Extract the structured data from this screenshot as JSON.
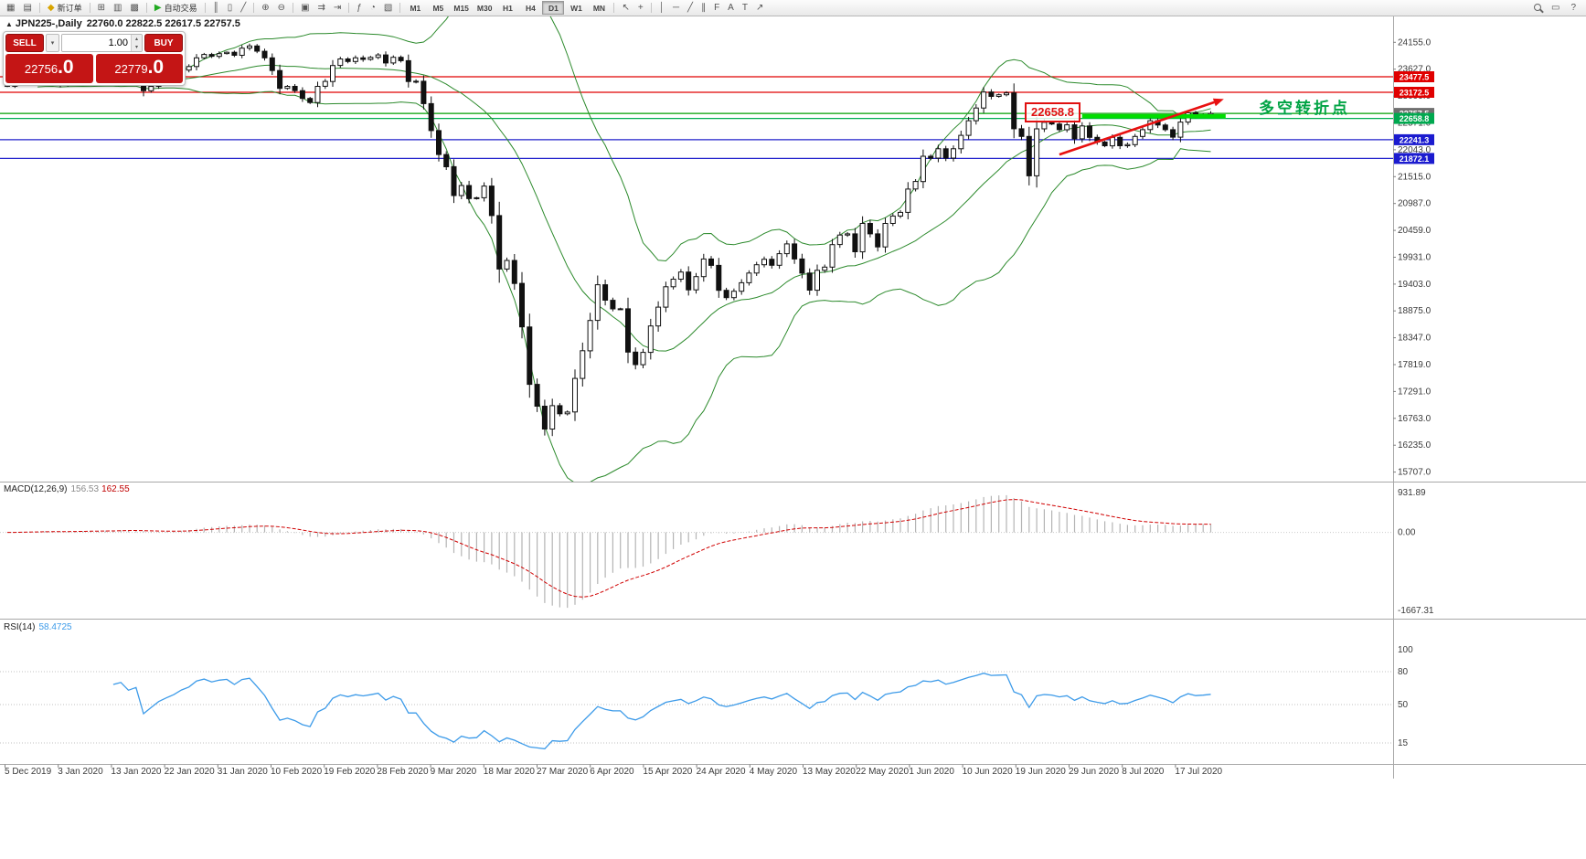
{
  "toolbar": {
    "groups": [
      {
        "items": [
          {
            "name": "new-chart",
            "glyph": "▦"
          },
          {
            "name": "profiles",
            "glyph": "▤"
          }
        ]
      },
      {
        "items": [
          {
            "name": "new-order",
            "glyph": "◆",
            "label": "新订单",
            "glyph_color": "#d8a400"
          }
        ]
      },
      {
        "items": [
          {
            "name": "market-watch",
            "glyph": "⊞"
          },
          {
            "name": "data-window",
            "glyph": "▥"
          },
          {
            "name": "navigator",
            "glyph": "▩"
          }
        ]
      },
      {
        "items": [
          {
            "name": "auto-trading",
            "glyph": "▶",
            "label": "自动交易",
            "glyph_color": "#22aa22"
          }
        ]
      },
      {
        "items": [
          {
            "name": "bar-chart",
            "glyph": "║"
          },
          {
            "name": "candlestick-chart",
            "glyph": "▯"
          },
          {
            "name": "line-chart",
            "glyph": "╱"
          }
        ]
      },
      {
        "items": [
          {
            "name": "zoom-in",
            "glyph": "⊕"
          },
          {
            "name": "zoom-out",
            "glyph": "⊖"
          }
        ]
      },
      {
        "items": [
          {
            "name": "tile-windows",
            "glyph": "▣"
          },
          {
            "name": "auto-scroll",
            "glyph": "⇉"
          },
          {
            "name": "chart-shift",
            "glyph": "⇥"
          }
        ]
      },
      {
        "items": [
          {
            "name": "indicators",
            "glyph": "ƒ"
          },
          {
            "name": "period-selector",
            "glyph": "◔"
          },
          {
            "name": "templates",
            "glyph": "▧"
          }
        ]
      },
      {
        "type": "timeframes"
      },
      {
        "items": [
          {
            "name": "cursor",
            "glyph": "↖"
          },
          {
            "name": "crosshair",
            "glyph": "+"
          }
        ]
      },
      {
        "items": [
          {
            "name": "vertical-line",
            "glyph": "│"
          },
          {
            "name": "horizontal-line",
            "glyph": "─"
          },
          {
            "name": "trendline",
            "glyph": "╱"
          },
          {
            "name": "channel",
            "glyph": "∥"
          },
          {
            "name": "fibonacci",
            "glyph": "F"
          },
          {
            "name": "text",
            "glyph": "A"
          },
          {
            "name": "text-label",
            "glyph": "T"
          },
          {
            "name": "arrows",
            "glyph": "↗"
          }
        ]
      }
    ],
    "timeframes": {
      "items": [
        "M1",
        "M5",
        "M15",
        "M30",
        "H1",
        "H4",
        "D1",
        "W1",
        "MN"
      ],
      "active": "D1"
    },
    "right_items": [
      {
        "name": "new-window",
        "glyph": "▭"
      },
      {
        "name": "help",
        "glyph": "?"
      }
    ]
  },
  "chart": {
    "collapse_icon": "▲",
    "symbol_title": "JPN225-,Daily",
    "ohlc": "22760.0 22822.5 22617.5 22757.5"
  },
  "one_click": {
    "sell_label": "SELL",
    "buy_label": "BUY",
    "volume": "1.00",
    "sell_price": "22756.0",
    "buy_price": "22779.0",
    "dropdown_icon": "▾",
    "spin_up": "▴",
    "spin_down": "▾"
  },
  "annotations": {
    "price_box": "22658.8",
    "turning_point": "多空转折点"
  },
  "macd": {
    "label": "MACD(12,26,9)",
    "value_main": "156.53",
    "value_signal": "162.55"
  },
  "rsi": {
    "label": "RSI(14)",
    "value": "58.4725"
  },
  "chart_data": {
    "type": "candlestick",
    "symbol": "JPN225-",
    "timeframe": "Daily",
    "ohlc_last": {
      "open": 22760.0,
      "high": 22822.5,
      "low": 22617.5,
      "close": 22757.5
    },
    "closes": [
      23292,
      23354,
      23430,
      23410,
      23391,
      23424,
      23360,
      23318,
      23380,
      23424,
      23452,
      23480,
      23440,
      23462,
      23506,
      23540,
      23480,
      23520,
      23204,
      23290,
      23385,
      23450,
      23512,
      23610,
      23680,
      23850,
      23916,
      23880,
      23933,
      23959,
      23900,
      24041,
      24083,
      23980,
      23850,
      23600,
      23250,
      23290,
      23205,
      23052,
      22972,
      23290,
      23386,
      23700,
      23828,
      23778,
      23850,
      23820,
      23860,
      23908,
      23750,
      23861,
      23795,
      23386,
      23390,
      22950,
      22420,
      21950,
      21710,
      21143,
      21340,
      21083,
      21100,
      21330,
      20750,
      19699,
      19868,
      19416,
      18560,
      17431,
      17002,
      16553,
      17012,
      16853,
      16888,
      17548,
      18092,
      18688,
      19389,
      19085,
      18917,
      18917,
      18065,
      17818,
      18060,
      18580,
      18950,
      19350,
      19500,
      19640,
      19290,
      19550,
      19897,
      19771,
      19280,
      19137,
      19262,
      19429,
      19619,
      19783,
      19890,
      19771,
      20000,
      20193,
      19897,
      19619,
      19283,
      19674,
      19737,
      20179,
      20366,
      20390,
      20037,
      20595,
      20390,
      20133,
      20595,
      20741,
      20813,
      21271,
      21419,
      21916,
      21878,
      22062,
      21878,
      22062,
      22326,
      22614,
      22864,
      23178,
      23091,
      23124,
      23160,
      22456,
      22305,
      21531,
      22455,
      22582,
      22549,
      22437,
      22534,
      22259,
      22512,
      22288,
      22195,
      22121,
      22288,
      22122,
      22145,
      22306,
      22439,
      22614,
      22529,
      22438,
      22291,
      22587,
      22770,
      22696,
      22717,
      22757
    ],
    "x_ticks": [
      "5 Dec 2019",
      "3 Jan 2020",
      "13 Jan 2020",
      "22 Jan 2020",
      "31 Jan 2020",
      "10 Feb 2020",
      "19 Feb 2020",
      "28 Feb 2020",
      "9 Mar 2020",
      "18 Mar 2020",
      "27 Mar 2020",
      "6 Apr 2020",
      "15 Apr 2020",
      "24 Apr 2020",
      "4 May 2020",
      "13 May 2020",
      "22 May 2020",
      "1 Jun 2020",
      "10 Jun 2020",
      "19 Jun 2020",
      "29 Jun 2020",
      "8 Jul 2020",
      "17 Jul 2020"
    ],
    "y_ticks": [
      24155,
      23627,
      23099,
      22571,
      22043,
      21515,
      20987,
      20459,
      19931,
      19403,
      18875,
      18347,
      17819,
      17291,
      16763,
      16235,
      15707
    ],
    "price_badges": [
      {
        "label": "23477.5",
        "bg": "#e00000"
      },
      {
        "label": "23172.5",
        "bg": "#e00000"
      },
      {
        "label": "22757.5",
        "bg": "#6f6f6f"
      },
      {
        "label": "22658.8",
        "bg": "#00a84f"
      },
      {
        "label": "22241.3",
        "bg": "#1b1bcf"
      },
      {
        "label": "21872.1",
        "bg": "#1b1bcf"
      }
    ],
    "levels": [
      {
        "price": 23477.5,
        "color": "#e00000"
      },
      {
        "price": 23172.5,
        "color": "#e00000"
      },
      {
        "price": 22757.5,
        "color": "#00a000"
      },
      {
        "price": 22658.8,
        "color": "#00b050"
      },
      {
        "price": 22241.3,
        "color": "#2020cc"
      },
      {
        "price": 21872.1,
        "color": "#2020cc"
      }
    ],
    "indicators": {
      "bollinger": {
        "period": 20,
        "deviation": 2,
        "color": "#2c8a2c"
      },
      "macd": {
        "fast": 12,
        "slow": 26,
        "signal": 9,
        "hist_color": "#b4b4b4",
        "signal_color": "#d00000"
      },
      "rsi": {
        "period": 14,
        "color": "#3d9be9"
      }
    },
    "macd_axis": [
      "931.89",
      "0.00",
      "-1667.31"
    ],
    "rsi_axis": [
      100,
      80,
      50,
      15
    ],
    "annotations": {
      "trend_arrow": {
        "from_index": 139,
        "from_price": 21950,
        "to_index": 160,
        "to_price": 23040,
        "color": "#e81010"
      },
      "support_segment": {
        "from_index": 142,
        "to_index": 160,
        "price": 22700,
        "color": "#00dd00"
      }
    }
  }
}
